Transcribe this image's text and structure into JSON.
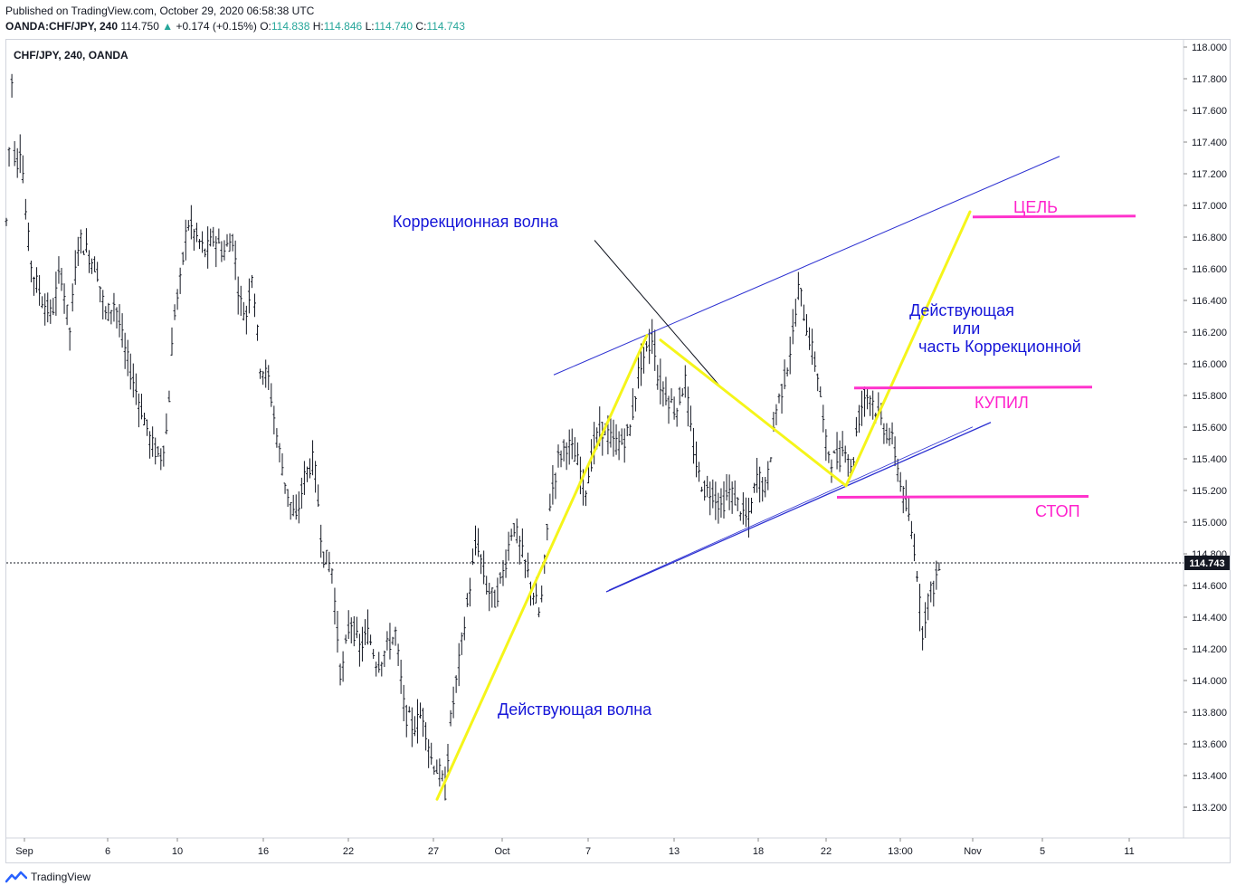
{
  "header": {
    "published": "Published on TradingView.com, October 29, 2020 06:58:38 UTC",
    "symbol": "OANDA:CHF/JPY, 240",
    "last": "114.750",
    "change_arrow": "▲",
    "change": "+0.174 (+0.15%)",
    "o_label": "O:",
    "o_value": "114.838",
    "h_label": "H:",
    "h_value": "114.846",
    "l_label": "L:",
    "l_value": "114.740",
    "c_label": "C:",
    "c_value": "114.743"
  },
  "chart_title": "CHF/JPY, 240, OANDA",
  "footer": {
    "brand": "TradingView",
    "logo_icon": "tradingview-logo-icon"
  },
  "colors": {
    "bars": "#131722",
    "channel": "#2b2fd1",
    "wave": "#f5f51a",
    "levels": "#ff33cc",
    "label_blue": "#1515d8",
    "label_pink": "#ff22cc",
    "price_tag": "#131722"
  },
  "chart_data": {
    "type": "ohlc",
    "interval": "240",
    "ylim": [
      113.1,
      118.05
    ],
    "y_ticks": [
      "118.000",
      "117.800",
      "117.600",
      "117.400",
      "117.200",
      "117.000",
      "116.800",
      "116.600",
      "116.400",
      "116.200",
      "116.000",
      "115.800",
      "115.600",
      "115.400",
      "115.200",
      "115.000",
      "114.800",
      "114.600",
      "114.400",
      "114.200",
      "114.000",
      "113.800",
      "113.600",
      "113.400",
      "113.200"
    ],
    "x_ticks": [
      "Sep",
      "6",
      "10",
      "16",
      "22",
      "27",
      "Oct",
      "7",
      "13",
      "18",
      "22",
      "13:00",
      "Nov",
      "5",
      "11"
    ],
    "current_price": "114.743",
    "price_path": [
      [
        0,
        116.9
      ],
      [
        6,
        117.8
      ],
      [
        10,
        117.2
      ],
      [
        16,
        117.4
      ],
      [
        22,
        116.9
      ],
      [
        28,
        116.6
      ],
      [
        40,
        116.4
      ],
      [
        50,
        116.3
      ],
      [
        60,
        116.6
      ],
      [
        70,
        116.2
      ],
      [
        80,
        116.8
      ],
      [
        90,
        116.7
      ],
      [
        100,
        116.6
      ],
      [
        110,
        116.3
      ],
      [
        120,
        116.4
      ],
      [
        130,
        116.1
      ],
      [
        140,
        115.9
      ],
      [
        150,
        115.7
      ],
      [
        160,
        115.5
      ],
      [
        170,
        115.4
      ],
      [
        178,
        115.6
      ],
      [
        185,
        116.3
      ],
      [
        192,
        116.5
      ],
      [
        200,
        116.9
      ],
      [
        210,
        116.8
      ],
      [
        220,
        116.7
      ],
      [
        230,
        116.8
      ],
      [
        240,
        116.7
      ],
      [
        250,
        116.8
      ],
      [
        258,
        116.4
      ],
      [
        265,
        116.3
      ],
      [
        272,
        116.6
      ],
      [
        280,
        116.0
      ],
      [
        290,
        115.9
      ],
      [
        300,
        115.5
      ],
      [
        310,
        115.2
      ],
      [
        320,
        115.0
      ],
      [
        330,
        115.3
      ],
      [
        340,
        115.4
      ],
      [
        350,
        114.8
      ],
      [
        360,
        114.7
      ],
      [
        370,
        114.0
      ],
      [
        380,
        114.4
      ],
      [
        390,
        114.2
      ],
      [
        400,
        114.3
      ],
      [
        410,
        114.1
      ],
      [
        420,
        114.2
      ],
      [
        430,
        114.3
      ],
      [
        440,
        113.8
      ],
      [
        450,
        113.7
      ],
      [
        460,
        113.8
      ],
      [
        470,
        113.5
      ],
      [
        480,
        113.4
      ],
      [
        485,
        113.3
      ],
      [
        490,
        113.7
      ],
      [
        500,
        114.1
      ],
      [
        510,
        114.5
      ],
      [
        520,
        114.9
      ],
      [
        530,
        114.6
      ],
      [
        540,
        114.5
      ],
      [
        550,
        114.7
      ],
      [
        560,
        115.0
      ],
      [
        570,
        114.8
      ],
      [
        580,
        114.6
      ],
      [
        590,
        114.4
      ],
      [
        600,
        115.1
      ],
      [
        610,
        115.4
      ],
      [
        620,
        115.5
      ],
      [
        630,
        115.4
      ],
      [
        640,
        115.2
      ],
      [
        650,
        115.5
      ],
      [
        660,
        115.6
      ],
      [
        670,
        115.5
      ],
      [
        680,
        115.5
      ],
      [
        690,
        115.6
      ],
      [
        700,
        116.0
      ],
      [
        710,
        116.1
      ],
      [
        715,
        116.2
      ],
      [
        720,
        115.9
      ],
      [
        730,
        115.8
      ],
      [
        740,
        115.7
      ],
      [
        750,
        115.9
      ],
      [
        758,
        115.5
      ],
      [
        765,
        115.3
      ],
      [
        772,
        115.2
      ],
      [
        780,
        115.2
      ],
      [
        790,
        115.1
      ],
      [
        800,
        115.2
      ],
      [
        810,
        115.1
      ],
      [
        820,
        115.0
      ],
      [
        830,
        115.3
      ],
      [
        840,
        115.2
      ],
      [
        850,
        115.7
      ],
      [
        860,
        115.9
      ],
      [
        870,
        116.2
      ],
      [
        876,
        116.5
      ],
      [
        882,
        116.3
      ],
      [
        890,
        116.1
      ],
      [
        898,
        115.9
      ],
      [
        905,
        115.5
      ],
      [
        912,
        115.4
      ],
      [
        920,
        115.4
      ],
      [
        928,
        115.5
      ],
      [
        934,
        115.3
      ],
      [
        940,
        115.6
      ],
      [
        948,
        115.8
      ],
      [
        955,
        115.8
      ],
      [
        962,
        115.7
      ],
      [
        970,
        115.6
      ],
      [
        980,
        115.5
      ],
      [
        990,
        115.2
      ],
      [
        998,
        115.0
      ],
      [
        1005,
        114.8
      ],
      [
        1012,
        114.3
      ],
      [
        1018,
        114.5
      ],
      [
        1025,
        114.6
      ],
      [
        1030,
        114.7
      ],
      [
        1036,
        114.74
      ]
    ],
    "series_note": "",
    "annotations": [
      {
        "text": "Коррекционная волна",
        "color": "blue"
      },
      {
        "text": "Действующая волна",
        "color": "blue"
      },
      {
        "text": "Действующая",
        "color": "blue"
      },
      {
        "text": "или",
        "color": "blue"
      },
      {
        "text": "часть Коррекционной",
        "color": "blue"
      },
      {
        "text": "ЦЕЛЬ",
        "color": "pink",
        "price": 116.93
      },
      {
        "text": "КУПИЛ",
        "color": "pink",
        "price": 115.84
      },
      {
        "text": "СТОП",
        "color": "pink",
        "price": 115.15
      }
    ],
    "wave_path": [
      [
        483,
        113.25
      ],
      [
        715,
        116.18
      ],
      [
        730,
        116.15
      ],
      [
        797,
        115.85
      ],
      [
        935,
        115.23
      ],
      [
        1072,
        116.96
      ]
    ],
    "channel_upper": [
      [
        612,
        115.93
      ],
      [
        1171,
        117.31
      ]
    ],
    "channel_lower": [
      [
        670,
        114.56
      ],
      [
        1095,
        115.63
      ]
    ],
    "levels": [
      {
        "name": "target",
        "price": 116.93,
        "x1": 1075,
        "x2": 1255
      },
      {
        "name": "buy",
        "price": 115.85,
        "x1": 944,
        "x2": 1207
      },
      {
        "name": "stop",
        "price": 115.16,
        "x1": 925,
        "x2": 1203
      }
    ],
    "callout_line": [
      [
        657,
        116.78
      ],
      [
        797,
        115.85
      ]
    ]
  }
}
